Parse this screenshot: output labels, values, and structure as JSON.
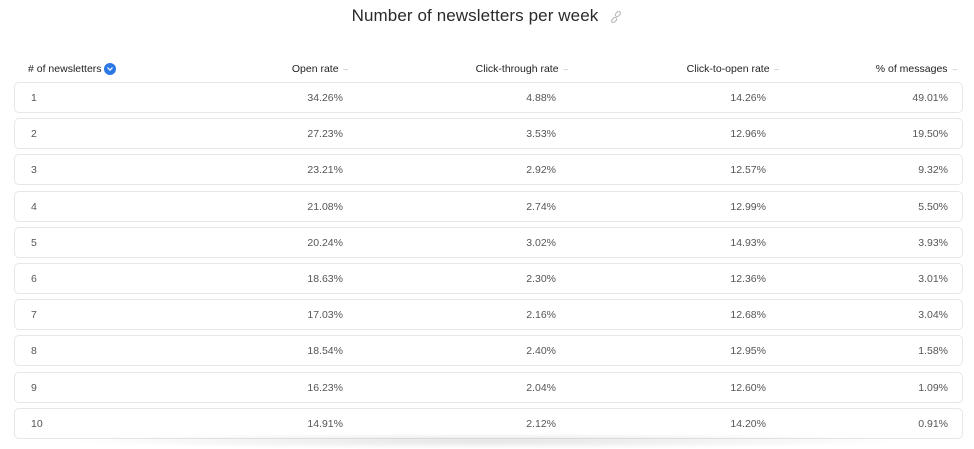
{
  "title": "Number of newsletters per week",
  "icons": {
    "link": "link-icon",
    "sort_active": "sort-desc-badge-icon",
    "sort": "sort-caret-icon"
  },
  "colors": {
    "accent": "#2b78e4",
    "border": "#e7e7e7",
    "text": "#555555"
  },
  "chart_data": {
    "type": "table",
    "title": "Number of newsletters per week",
    "columns": [
      "# of newsletters",
      "Open rate",
      "Click-through rate",
      "Click-to-open rate",
      "% of messages"
    ],
    "rows": [
      [
        "1",
        "34.26%",
        "4.88%",
        "14.26%",
        "49.01%"
      ],
      [
        "2",
        "27.23%",
        "3.53%",
        "12.96%",
        "19.50%"
      ],
      [
        "3",
        "23.21%",
        "2.92%",
        "12.57%",
        "9.32%"
      ],
      [
        "4",
        "21.08%",
        "2.74%",
        "12.99%",
        "5.50%"
      ],
      [
        "5",
        "20.24%",
        "3.02%",
        "14.93%",
        "3.93%"
      ],
      [
        "6",
        "18.63%",
        "2.30%",
        "12.36%",
        "3.01%"
      ],
      [
        "7",
        "17.03%",
        "2.16%",
        "12.68%",
        "3.04%"
      ],
      [
        "8",
        "18.54%",
        "2.40%",
        "12.95%",
        "1.58%"
      ],
      [
        "9",
        "16.23%",
        "2.04%",
        "12.60%",
        "1.09%"
      ],
      [
        "10",
        "14.91%",
        "2.12%",
        "14.20%",
        "0.91%"
      ]
    ]
  }
}
